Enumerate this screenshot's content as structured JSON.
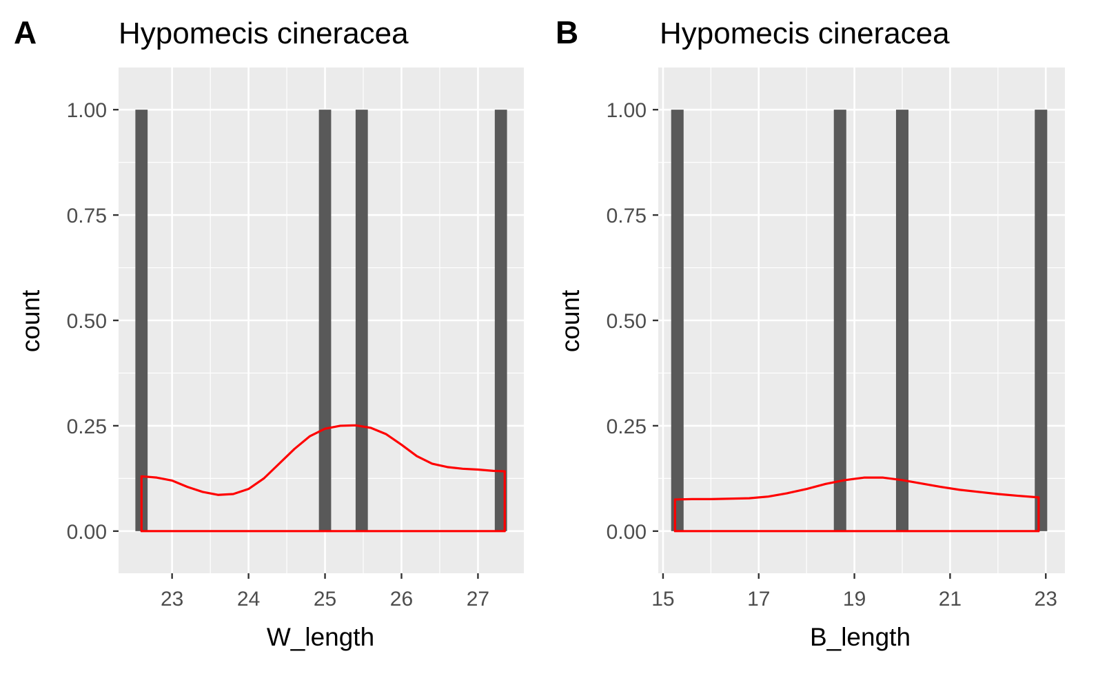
{
  "chart_data": [
    {
      "panel_tag": "A",
      "type": "bar",
      "overlay": "density",
      "title": "Hypomecis cineracea",
      "xlabel": "W_length",
      "ylabel": "count",
      "xlim": [
        22.3,
        27.6
      ],
      "ylim": [
        -0.1,
        1.1
      ],
      "xticks": [
        23,
        24,
        25,
        26,
        27
      ],
      "xtick_labels": [
        "23",
        "24",
        "25",
        "26",
        "27"
      ],
      "yticks": [
        0,
        0.25,
        0.5,
        0.75,
        1.0
      ],
      "ytick_labels": [
        "0.00",
        "0.25",
        "0.50",
        "0.75",
        "1.00"
      ],
      "bars": [
        {
          "x": 22.6,
          "count": 1
        },
        {
          "x": 25.0,
          "count": 1
        },
        {
          "x": 25.48,
          "count": 1
        },
        {
          "x": 27.3,
          "count": 1
        }
      ],
      "bar_width": 0.16,
      "density_series": {
        "x": [
          22.6,
          22.8,
          23.0,
          23.2,
          23.4,
          23.6,
          23.8,
          24.0,
          24.2,
          24.4,
          24.6,
          24.8,
          25.0,
          25.2,
          25.4,
          25.6,
          25.8,
          26.0,
          26.2,
          26.4,
          26.6,
          26.8,
          27.0,
          27.2,
          27.35
        ],
        "y": [
          0.13,
          0.127,
          0.12,
          0.105,
          0.093,
          0.086,
          0.088,
          0.1,
          0.125,
          0.16,
          0.195,
          0.225,
          0.243,
          0.25,
          0.251,
          0.245,
          0.23,
          0.205,
          0.178,
          0.16,
          0.152,
          0.148,
          0.146,
          0.143,
          0.142
        ]
      },
      "grid": true,
      "colors": {
        "panel_bg": "#ebebeb",
        "grid": "#ffffff",
        "bar": "#595959",
        "density": "#ff0000"
      }
    },
    {
      "panel_tag": "B",
      "type": "bar",
      "overlay": "density",
      "title": "Hypomecis cineracea",
      "xlabel": "B_length",
      "ylabel": "count",
      "xlim": [
        14.9,
        23.4
      ],
      "ylim": [
        -0.1,
        1.1
      ],
      "xticks": [
        15,
        17,
        19,
        21,
        23
      ],
      "xtick_labels": [
        "15",
        "17",
        "19",
        "21",
        "23"
      ],
      "yticks": [
        0,
        0.25,
        0.5,
        0.75,
        1.0
      ],
      "ytick_labels": [
        "0.00",
        "0.25",
        "0.50",
        "0.75",
        "1.00"
      ],
      "bars": [
        {
          "x": 15.3,
          "count": 1
        },
        {
          "x": 18.7,
          "count": 1
        },
        {
          "x": 20.0,
          "count": 1
        },
        {
          "x": 22.9,
          "count": 1
        }
      ],
      "bar_width": 0.26,
      "density_series": {
        "x": [
          15.25,
          15.6,
          16.0,
          16.4,
          16.8,
          17.2,
          17.6,
          18.0,
          18.4,
          18.8,
          19.2,
          19.6,
          20.0,
          20.4,
          20.8,
          21.2,
          21.6,
          22.0,
          22.4,
          22.85
        ],
        "y": [
          0.075,
          0.076,
          0.076,
          0.077,
          0.078,
          0.082,
          0.09,
          0.1,
          0.112,
          0.121,
          0.127,
          0.127,
          0.121,
          0.113,
          0.105,
          0.098,
          0.093,
          0.088,
          0.084,
          0.08
        ]
      },
      "grid": true,
      "colors": {
        "panel_bg": "#ebebeb",
        "grid": "#ffffff",
        "bar": "#595959",
        "density": "#ff0000"
      }
    }
  ]
}
